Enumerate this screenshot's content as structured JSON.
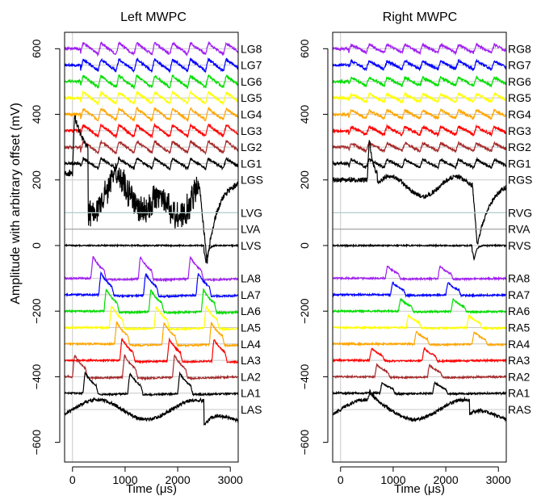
{
  "figure": {
    "ylabel": "Amplitude with arbitrary offset (mV)"
  },
  "chart_data": [
    {
      "type": "line",
      "title": "Left MWPC",
      "xlabel": "Time (μs)",
      "ylabel": "Amplitude with arbitrary offset (mV)",
      "xlim": [
        -150,
        3150
      ],
      "ylim": [
        -660,
        650
      ],
      "x_ticks": [
        0,
        1000,
        2000,
        3000
      ],
      "y_ticks": [
        600,
        400,
        200,
        0,
        -200,
        -400,
        -600
      ],
      "grid": true,
      "series": [
        {
          "name": "LG8",
          "color": "#a020f0",
          "offset": 600,
          "kind": "gwire",
          "amp": 35
        },
        {
          "name": "LG7",
          "color": "#0000ff",
          "offset": 550,
          "kind": "gwire",
          "amp": 35
        },
        {
          "name": "LG6",
          "color": "#00dd00",
          "offset": 500,
          "kind": "gwire",
          "amp": 35
        },
        {
          "name": "LG5",
          "color": "#ffff00",
          "offset": 450,
          "kind": "gwire",
          "amp": 35
        },
        {
          "name": "LG4",
          "color": "#ffa500",
          "offset": 400,
          "kind": "gwire",
          "amp": 35
        },
        {
          "name": "LG3",
          "color": "#ff0000",
          "offset": 350,
          "kind": "gwire",
          "amp": 35
        },
        {
          "name": "LG2",
          "color": "#a52a2a",
          "offset": 300,
          "kind": "gwire",
          "amp": 35
        },
        {
          "name": "LG1",
          "color": "#000000",
          "offset": 250,
          "kind": "gwire",
          "amp": 30
        },
        {
          "name": "LGS",
          "color": "#000000",
          "offset": 200,
          "kind": "gsum",
          "amp": 1
        },
        {
          "name": "LVG",
          "color": "#b4cdcd",
          "offset": 100,
          "kind": "flat",
          "amp": 0
        },
        {
          "name": "LVA",
          "color": "#a0a0a0",
          "offset": 50,
          "kind": "flat",
          "amp": 0
        },
        {
          "name": "LVS",
          "color": "#000000",
          "offset": 0,
          "kind": "vsum",
          "amp": -55
        },
        {
          "name": "LA8",
          "color": "#a020f0",
          "offset": -100,
          "kind": "awire",
          "amp": 80,
          "peaks": [
            350,
            1250,
            2200
          ]
        },
        {
          "name": "LA7",
          "color": "#0000ff",
          "offset": -150,
          "kind": "awire",
          "amp": 80,
          "peaks": [
            500,
            1350,
            2350
          ]
        },
        {
          "name": "LA6",
          "color": "#00dd00",
          "offset": -200,
          "kind": "awire",
          "amp": 80,
          "peaks": [
            600,
            1450,
            2450
          ]
        },
        {
          "name": "LA5",
          "color": "#ffff00",
          "offset": -250,
          "kind": "awire",
          "amp": 80,
          "peaks": [
            700,
            1550,
            2500
          ]
        },
        {
          "name": "LA4",
          "color": "#ffa500",
          "offset": -300,
          "kind": "awire",
          "amp": 80,
          "peaks": [
            800,
            1700,
            2600
          ]
        },
        {
          "name": "LA3",
          "color": "#ff0000",
          "offset": -350,
          "kind": "awire",
          "amp": 80,
          "peaks": [
            900,
            1800,
            2650
          ]
        },
        {
          "name": "LA2",
          "color": "#a52a2a",
          "offset": -400,
          "kind": "awire",
          "amp": 80,
          "peaks": [
            0,
            950,
            1900
          ]
        },
        {
          "name": "LA1",
          "color": "#000000",
          "offset": -450,
          "kind": "awire",
          "amp": 75,
          "peaks": [
            200,
            1050,
            2000
          ]
        },
        {
          "name": "LAS",
          "color": "#000000",
          "offset": -500,
          "kind": "asum",
          "amp": 1
        }
      ]
    },
    {
      "type": "line",
      "title": "Right MWPC",
      "xlabel": "Time (μs)",
      "ylabel": "",
      "xlim": [
        -150,
        3150
      ],
      "ylim": [
        -660,
        650
      ],
      "x_ticks": [
        0,
        1000,
        2000,
        3000
      ],
      "y_ticks": [
        600,
        400,
        200,
        0,
        -200,
        -400,
        -600
      ],
      "grid": true,
      "series": [
        {
          "name": "RG8",
          "color": "#a020f0",
          "offset": 600,
          "kind": "gwire",
          "amp": 25
        },
        {
          "name": "RG7",
          "color": "#0000ff",
          "offset": 550,
          "kind": "gwire",
          "amp": 25
        },
        {
          "name": "RG6",
          "color": "#00dd00",
          "offset": 500,
          "kind": "gwire",
          "amp": 25
        },
        {
          "name": "RG5",
          "color": "#ffff00",
          "offset": 450,
          "kind": "gwire",
          "amp": 25
        },
        {
          "name": "RG4",
          "color": "#ffa500",
          "offset": 400,
          "kind": "gwire",
          "amp": 25
        },
        {
          "name": "RG3",
          "color": "#ff0000",
          "offset": 350,
          "kind": "gwire",
          "amp": 25
        },
        {
          "name": "RG2",
          "color": "#a52a2a",
          "offset": 300,
          "kind": "gwire",
          "amp": 25
        },
        {
          "name": "RG1",
          "color": "#000000",
          "offset": 250,
          "kind": "gwire",
          "amp": 25
        },
        {
          "name": "RGS",
          "color": "#000000",
          "offset": 200,
          "kind": "gsum",
          "amp": 1
        },
        {
          "name": "RVG",
          "color": "#b4cdcd",
          "offset": 100,
          "kind": "flat",
          "amp": 0
        },
        {
          "name": "RVA",
          "color": "#a0a0a0",
          "offset": 50,
          "kind": "flat",
          "amp": 0
        },
        {
          "name": "RVS",
          "color": "#000000",
          "offset": 0,
          "kind": "vsum",
          "amp": -45
        },
        {
          "name": "RA8",
          "color": "#a020f0",
          "offset": -100,
          "kind": "awire",
          "amp": 45,
          "peaks": [
            850,
            1850
          ]
        },
        {
          "name": "RA7",
          "color": "#0000ff",
          "offset": -150,
          "kind": "awire",
          "amp": 45,
          "peaks": [
            950,
            2000
          ]
        },
        {
          "name": "RA6",
          "color": "#00dd00",
          "offset": -200,
          "kind": "awire",
          "amp": 45,
          "peaks": [
            1100,
            2100
          ]
        },
        {
          "name": "RA5",
          "color": "#ffff00",
          "offset": -250,
          "kind": "awire",
          "amp": 45,
          "peaks": [
            1250,
            2400
          ]
        },
        {
          "name": "RA4",
          "color": "#ffa500",
          "offset": -300,
          "kind": "awire",
          "amp": 45,
          "peaks": [
            1400,
            2500
          ]
        },
        {
          "name": "RA3",
          "color": "#ff0000",
          "offset": -350,
          "kind": "awire",
          "amp": 45,
          "peaks": [
            550,
            1550
          ]
        },
        {
          "name": "RA2",
          "color": "#a52a2a",
          "offset": -400,
          "kind": "awire",
          "amp": 45,
          "peaks": [
            650,
            1650
          ]
        },
        {
          "name": "RA1",
          "color": "#000000",
          "offset": -450,
          "kind": "awire",
          "amp": 40,
          "peaks": [
            750,
            1750
          ]
        },
        {
          "name": "RAS",
          "color": "#000000",
          "offset": -500,
          "kind": "asum",
          "amp": 1
        }
      ]
    }
  ]
}
